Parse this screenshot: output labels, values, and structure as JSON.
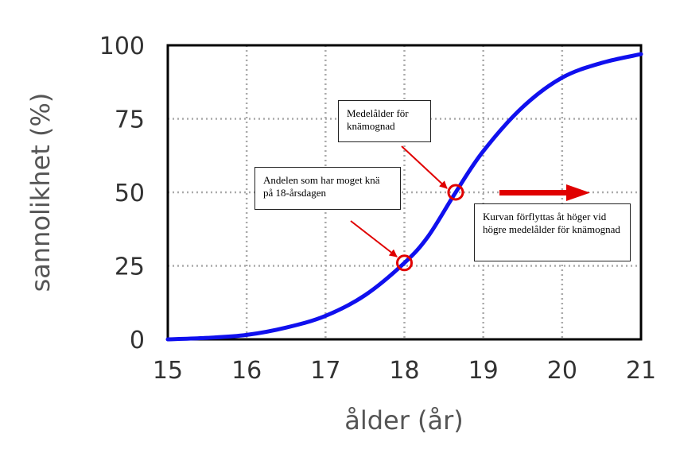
{
  "chart_data": {
    "type": "line",
    "xlabel": "ålder (år)",
    "ylabel": "sannolikhet (%)",
    "xlim": [
      15,
      21
    ],
    "ylim": [
      0,
      100
    ],
    "xticks": [
      "15",
      "16",
      "17",
      "18",
      "19",
      "20",
      "21"
    ],
    "yticks": [
      "0",
      "25",
      "50",
      "75",
      "100"
    ],
    "grid": true,
    "series": [
      {
        "x": [
          15,
          15.5,
          16,
          16.5,
          17,
          17.5,
          18,
          18.3,
          18.65,
          19,
          19.5,
          20,
          20.5,
          21
        ],
        "values": [
          0,
          0.5,
          1.5,
          4,
          8,
          15,
          26,
          35,
          50,
          64,
          79,
          89,
          94,
          97
        ]
      }
    ],
    "markers": [
      {
        "x": 18.65,
        "y": 50
      },
      {
        "x": 18,
        "y": 26
      }
    ],
    "annotations": [
      {
        "text": "Medelålder för knämognad",
        "points_to": {
          "x": 18.65,
          "y": 50
        }
      },
      {
        "text": "Andelen som har moget knä på 18-årsdagen",
        "points_to": {
          "x": 18,
          "y": 26
        }
      },
      {
        "text": "Kurvan förflyttas åt höger vid högre medelålder för knämognad"
      }
    ],
    "colors": {
      "line": "#1010ee",
      "marker": "#e00000",
      "arrow": "#e00000",
      "grid": "#aaaaaa"
    }
  }
}
